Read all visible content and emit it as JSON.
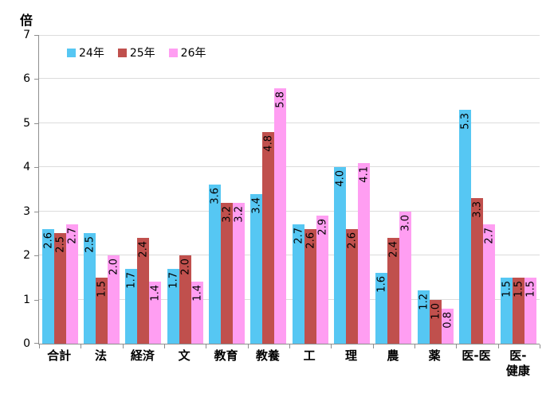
{
  "chart_data": {
    "type": "bar",
    "title": "",
    "xlabel": "",
    "ylabel": "倍",
    "ylim": [
      0,
      7
    ],
    "yticks": [
      0,
      1,
      2,
      3,
      4,
      5,
      6,
      7
    ],
    "grid": true,
    "legend_position": "top-left",
    "value_labels": true,
    "value_label_rotation": 90,
    "categories": [
      "合計",
      "法",
      "経済",
      "文",
      "教育",
      "教養",
      "工",
      "理",
      "農",
      "薬",
      "医-医",
      "医-\n健康"
    ],
    "series": [
      {
        "name": "24年",
        "color": "#56C7F3",
        "values": [
          2.6,
          2.5,
          1.7,
          1.7,
          3.6,
          3.4,
          2.7,
          4.0,
          1.6,
          1.2,
          5.3,
          1.5
        ]
      },
      {
        "name": "25年",
        "color": "#C0504D",
        "values": [
          2.5,
          1.5,
          2.4,
          2.0,
          3.2,
          4.8,
          2.6,
          2.6,
          2.4,
          1.0,
          3.3,
          1.5
        ]
      },
      {
        "name": "26年",
        "color": "#FF9EF2",
        "values": [
          2.7,
          2.0,
          1.4,
          1.4,
          3.2,
          5.8,
          2.9,
          4.1,
          3.0,
          0.8,
          2.7,
          1.5
        ]
      }
    ],
    "colors": {
      "grid": "#dcdcdc",
      "axis": "#8e8e8e",
      "text": "#000000"
    }
  }
}
